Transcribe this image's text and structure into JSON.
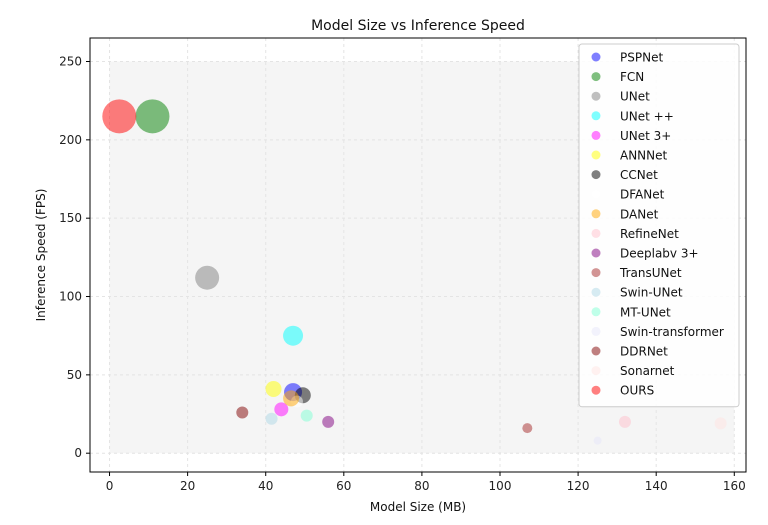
{
  "chart_data": {
    "type": "scatter",
    "title": "Model Size vs Inference Speed",
    "xlabel": "Model Size (MB)",
    "ylabel": "Inference Speed (FPS)",
    "xlim": [
      -5,
      163
    ],
    "ylim": [
      -12,
      265
    ],
    "xticks": [
      0,
      20,
      40,
      60,
      80,
      100,
      120,
      140,
      160
    ],
    "yticks": [
      0,
      50,
      100,
      150,
      200,
      250
    ],
    "grid": true,
    "legend_position": "upper-right",
    "plot_background": "#f5f5f5",
    "series": [
      {
        "name": "PSPNet",
        "color": "#0000ff",
        "x": 47.0,
        "y": 39,
        "size": 9
      },
      {
        "name": "FCN",
        "color": "#008000",
        "x": 11.0,
        "y": 215,
        "size": 17
      },
      {
        "name": "UNet",
        "color": "#808080",
        "x": 25.0,
        "y": 112,
        "size": 12
      },
      {
        "name": "UNet ++",
        "color": "#00ffff",
        "x": 47.0,
        "y": 75,
        "size": 10
      },
      {
        "name": "UNet 3+",
        "color": "#ff00ff",
        "x": 44.0,
        "y": 28,
        "size": 7
      },
      {
        "name": "ANNNet",
        "color": "#ffff00",
        "x": 42.0,
        "y": 41,
        "size": 8
      },
      {
        "name": "CCNet",
        "color": "#000000",
        "x": 49.5,
        "y": 37,
        "size": 8
      },
      {
        "name": "DFANet",
        "color": "#ffffff",
        "x": 48.0,
        "y": 33,
        "size": 6
      },
      {
        "name": "DANet",
        "color": "#ffa500",
        "x": 46.5,
        "y": 35,
        "size": 8
      },
      {
        "name": "RefineNet",
        "color": "#ffc0cb",
        "x": 132.0,
        "y": 20,
        "size": 6
      },
      {
        "name": "Deeplabv 3+",
        "color": "#800080",
        "x": 56.0,
        "y": 20,
        "size": 6
      },
      {
        "name": "TransUNet",
        "color": "#a52a2a",
        "x": 107.0,
        "y": 16,
        "size": 5
      },
      {
        "name": "Swin-UNet",
        "color": "#add8e6",
        "x": 41.5,
        "y": 22,
        "size": 6
      },
      {
        "name": "MT-UNet",
        "color": "#7fffd4",
        "x": 50.5,
        "y": 24,
        "size": 6
      },
      {
        "name": "Swin-transformer",
        "color": "#e6e6fa",
        "x": 125.0,
        "y": 8,
        "size": 4
      },
      {
        "name": "DDRNet",
        "color": "#800000",
        "x": 34.0,
        "y": 26,
        "size": 6
      },
      {
        "name": "Sonarnet",
        "color": "#ffe4e1",
        "x": 156.5,
        "y": 19,
        "size": 6
      },
      {
        "name": "OURS",
        "color": "#ff0000",
        "x": 2.5,
        "y": 215,
        "size": 17
      }
    ],
    "legend_alpha": 0.5
  }
}
